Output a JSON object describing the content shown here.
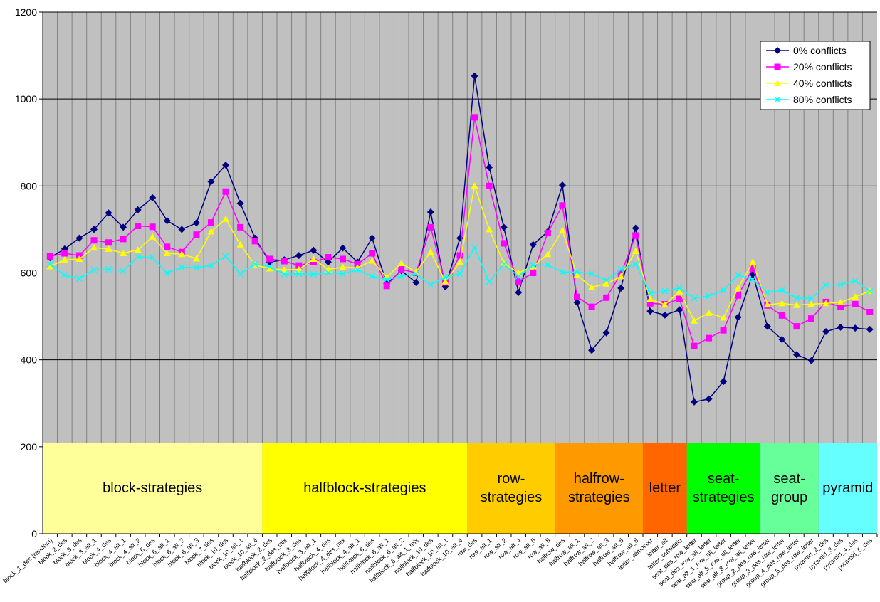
{
  "chart_data": {
    "type": "line",
    "categories": [
      "block_1_des (random)",
      "block_2_des",
      "block_3_des",
      "block_3_alt_1",
      "block_4_des",
      "block_4_alt_1",
      "block_4_alt_2",
      "block_6_des",
      "block_6_alt_1",
      "block_6_alt_2",
      "block_6_alt_3",
      "block_7_des",
      "block_10_des",
      "block_10_alt_1",
      "block_10_alt_4",
      "halfblock_2_des",
      "halfblock_2_des_mix",
      "halfblock_3_des",
      "halfblock_3_alt_1",
      "halfblock_4_des",
      "halfblock_4_des_mix",
      "halfblock_4_alt_1",
      "halfblock_6_des",
      "halfblock_6_alt_1",
      "halfblock_6_alt_2",
      "halfblock_6_alt_1_mix",
      "halfblock_10_des",
      "halfblock_10_alt_1",
      "halfblock_10_alt_4",
      "row_des",
      "row_alt_1",
      "row_alt_2",
      "row_alt_4",
      "row_alt_5",
      "row_alt_8",
      "halfrow_des",
      "halfrow_alt_1",
      "halfrow_alt_2",
      "halfrow_alt_3",
      "halfrow_alt_5",
      "halfrow_alt_8",
      "letter_wimocorr",
      "letter_alt",
      "letter_outsidein",
      "seat_des_row_letter",
      "seat_des_row_alt_letter",
      "seat_alt_1_row_alt_letter",
      "seat_alt_5_row_alt_letter",
      "seat_alt_8_row_alt_letter",
      "group_2_des_row_letter",
      "group_3_des_row_letter",
      "group_4_des_row_letter",
      "group_5_des_row_letter",
      "pyramid_2_des",
      "pyramid_3_des",
      "pyramid_4_des",
      "pyramid_5_des"
    ],
    "series": [
      {
        "name": "0% conflicts",
        "color": "#000080",
        "marker": "diamond",
        "values": [
          635,
          655,
          680,
          700,
          738,
          705,
          745,
          773,
          720,
          700,
          715,
          810,
          848,
          760,
          680,
          625,
          630,
          640,
          652,
          625,
          657,
          625,
          680,
          575,
          605,
          578,
          740,
          568,
          680,
          1053,
          843,
          705,
          555,
          665,
          695,
          802,
          532,
          422,
          462,
          565,
          703,
          512,
          503,
          515,
          303,
          310,
          350,
          498,
          597,
          477,
          447,
          412,
          398,
          465,
          475,
          473,
          470
        ]
      },
      {
        "name": "20% conflicts",
        "color": "#ff00ff",
        "marker": "square",
        "values": [
          638,
          645,
          640,
          675,
          670,
          678,
          708,
          706,
          660,
          648,
          688,
          716,
          787,
          705,
          673,
          632,
          627,
          617,
          625,
          636,
          632,
          620,
          645,
          570,
          608,
          600,
          705,
          578,
          640,
          958,
          800,
          668,
          580,
          600,
          692,
          755,
          545,
          522,
          543,
          598,
          686,
          530,
          528,
          540,
          432,
          450,
          468,
          548,
          610,
          525,
          502,
          477,
          495,
          533,
          522,
          528,
          510
        ]
      },
      {
        "name": "40% conflicts",
        "color": "#ffff00",
        "marker": "triangle",
        "values": [
          615,
          630,
          632,
          658,
          655,
          645,
          653,
          683,
          645,
          643,
          633,
          695,
          724,
          665,
          618,
          610,
          607,
          608,
          632,
          608,
          613,
          612,
          628,
          590,
          622,
          602,
          648,
          580,
          625,
          800,
          700,
          622,
          600,
          615,
          643,
          698,
          595,
          567,
          575,
          592,
          650,
          540,
          527,
          557,
          490,
          508,
          497,
          565,
          625,
          527,
          530,
          526,
          528,
          530,
          532,
          545,
          558
        ]
      },
      {
        "name": "80% conflicts",
        "color": "#00ffff",
        "marker": "x",
        "values": [
          620,
          595,
          587,
          607,
          608,
          605,
          637,
          635,
          600,
          613,
          612,
          617,
          638,
          598,
          620,
          615,
          597,
          598,
          597,
          600,
          598,
          607,
          592,
          585,
          592,
          598,
          573,
          590,
          598,
          658,
          580,
          620,
          592,
          618,
          618,
          602,
          602,
          598,
          583,
          608,
          620,
          553,
          558,
          565,
          542,
          547,
          560,
          595,
          585,
          555,
          560,
          542,
          541,
          572,
          573,
          582,
          558
        ]
      }
    ],
    "ylim": [
      0,
      1200
    ],
    "yticks": [
      0,
      200,
      400,
      600,
      800,
      1000,
      1200
    ],
    "grid": true,
    "legend": "top-right",
    "regions": [
      {
        "lines": [
          "block-strategies"
        ],
        "from": "block_1_des (random)",
        "to": "block_10_alt_4",
        "color": "#ffff99"
      },
      {
        "lines": [
          "halfblock-strategies"
        ],
        "from": "halfblock_2_des",
        "to": "halfblock_10_alt_4",
        "color": "#ffff00"
      },
      {
        "lines": [
          "row-",
          "strategies"
        ],
        "from": "row_des",
        "to": "row_alt_8",
        "color": "#ffcc00"
      },
      {
        "lines": [
          "halfrow-",
          "strategies"
        ],
        "from": "halfrow_des",
        "to": "halfrow_alt_8",
        "color": "#ff9900"
      },
      {
        "lines": [
          "letter"
        ],
        "from": "letter_wimocorr",
        "to": "letter_outsidein",
        "color": "#ff6600"
      },
      {
        "lines": [
          "seat-",
          "strategies"
        ],
        "from": "seat_des_row_letter",
        "to": "seat_alt_8_row_alt_letter",
        "color": "#00ff00"
      },
      {
        "lines": [
          "seat-",
          "group"
        ],
        "from": "group_2_des_row_letter",
        "to": "group_5_des_row_letter",
        "color": "#66ff99"
      },
      {
        "lines": [
          "pyramid"
        ],
        "from": "pyramid_2_des",
        "to": "pyramid_5_des",
        "color": "#66ffff"
      }
    ]
  }
}
